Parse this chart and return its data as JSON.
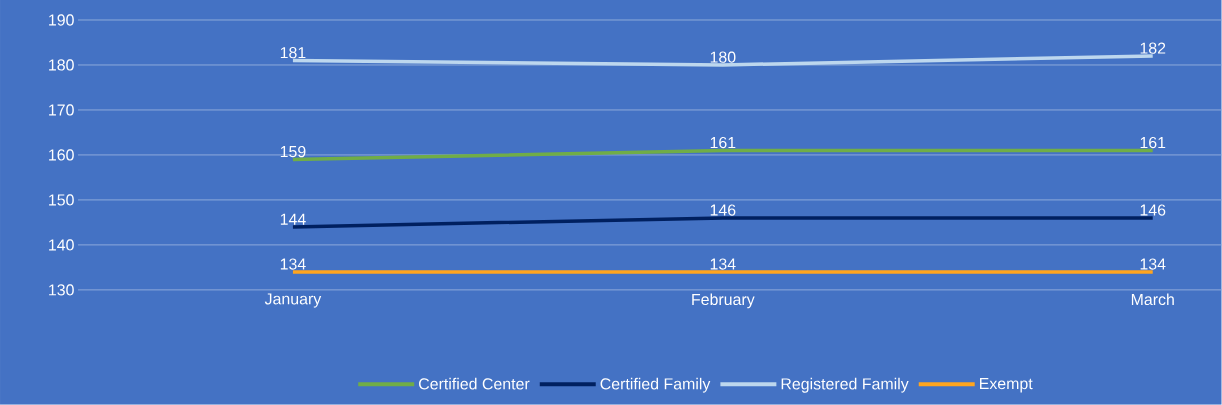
{
  "chart_data": {
    "type": "line",
    "categories": [
      "January",
      "February",
      "March"
    ],
    "series": [
      {
        "name": "Certified Center",
        "color": "#70ad47",
        "values": [
          159,
          161,
          161
        ]
      },
      {
        "name": "Certified Family",
        "color": "#002060",
        "values": [
          144,
          146,
          146
        ]
      },
      {
        "name": "Registered Family",
        "color": "#bdd7ee",
        "values": [
          181,
          180,
          182
        ]
      },
      {
        "name": "Exempt",
        "color": "#ffa51f",
        "values": [
          134,
          134,
          134
        ]
      }
    ],
    "ylim": [
      130,
      190
    ],
    "yticks": [
      130,
      140,
      150,
      160,
      170,
      180,
      190
    ],
    "grid": "y",
    "legend": "bottom",
    "data_labels": true,
    "marker": "none",
    "line_style": "solid"
  }
}
